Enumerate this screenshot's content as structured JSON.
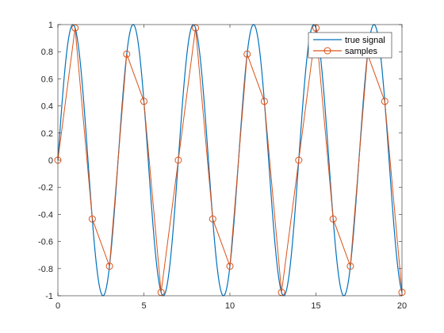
{
  "colors": {
    "background": "#ffffff",
    "axes": "#262626",
    "true_signal": "#0072BD",
    "samples": "#D95319"
  },
  "chart_data": {
    "type": "line",
    "title": "",
    "xlabel": "",
    "ylabel": "",
    "xlim": [
      0,
      20
    ],
    "ylim": [
      -1,
      1
    ],
    "grid": false,
    "legend_position": "top-right",
    "x_ticks": [
      "0",
      "5",
      "10",
      "15",
      "20"
    ],
    "y_ticks": [
      "-1",
      "-0.8",
      "-0.6",
      "-0.4",
      "-0.2",
      "0",
      "0.2",
      "0.4",
      "0.6",
      "0.8",
      "1"
    ],
    "series": [
      {
        "name": "true signal",
        "style": "line",
        "function": "sin(2*pi*x/3.5)",
        "period": 3.5,
        "amplitude": 1,
        "x_range": [
          0,
          20
        ]
      },
      {
        "name": "samples",
        "style": "line-with-circle-markers",
        "x": [
          0,
          1,
          2,
          3,
          4,
          5,
          6,
          7,
          8,
          9,
          10,
          11,
          12,
          13,
          14,
          15,
          16,
          17,
          18,
          19,
          20
        ],
        "y": [
          0,
          0.975,
          -0.434,
          -0.782,
          0.782,
          0.434,
          -0.975,
          0,
          0.975,
          -0.434,
          -0.782,
          0.782,
          0.434,
          -0.975,
          0,
          0.975,
          -0.434,
          -0.782,
          0.782,
          0.434,
          -0.975
        ]
      }
    ]
  }
}
